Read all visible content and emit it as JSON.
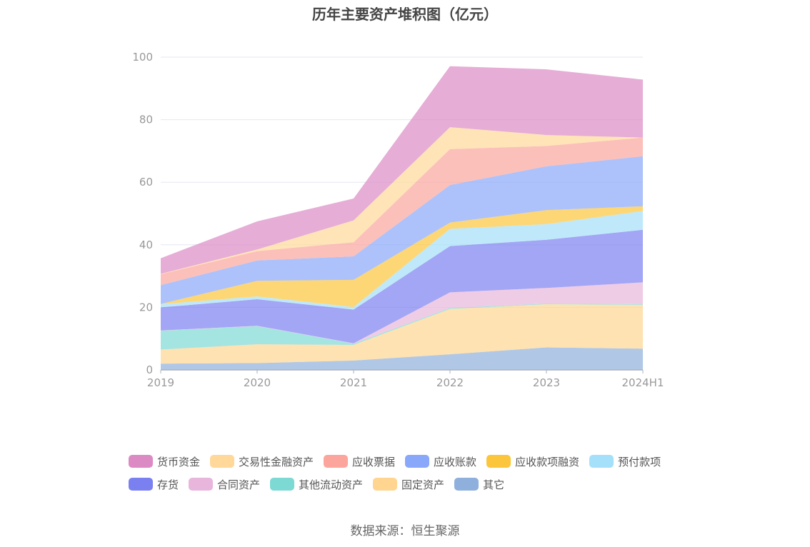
{
  "chart_data": {
    "type": "area",
    "stacked": true,
    "title": "历年主要资产堆积图（亿元）",
    "xlabel": "",
    "ylabel": "",
    "categories": [
      "2019",
      "2020",
      "2021",
      "2022",
      "2023",
      "2024H1"
    ],
    "ylim": [
      0,
      100
    ],
    "yticks": [
      "0",
      "20",
      "40",
      "60",
      "80",
      "100"
    ],
    "grid": true,
    "legend_position": "bottom",
    "series": [
      {
        "name": "其它",
        "color": "#8fb0dc",
        "values": [
          2.0,
          2.2,
          3.0,
          5.0,
          7.2,
          6.8
        ]
      },
      {
        "name": "固定资产",
        "color": "#ffd590",
        "values": [
          4.5,
          6.0,
          5.0,
          14.5,
          13.8,
          14.0
        ]
      },
      {
        "name": "其他流动资产",
        "color": "#7dd9d4",
        "values": [
          6.0,
          5.8,
          0.4,
          0.3,
          0.2,
          0.2
        ]
      },
      {
        "name": "合同资产",
        "color": "#e8b6dc",
        "values": [
          0.1,
          0.1,
          0.1,
          5.0,
          5.0,
          7.0
        ]
      },
      {
        "name": "存货",
        "color": "#7b80f0",
        "values": [
          7.4,
          8.5,
          10.8,
          14.8,
          15.4,
          16.8
        ]
      },
      {
        "name": "预付款项",
        "color": "#a4e0fa",
        "values": [
          1.0,
          0.9,
          0.8,
          5.5,
          5.0,
          6.0
        ]
      },
      {
        "name": "应收款项融资",
        "color": "#fcc63c",
        "values": [
          0.1,
          5.0,
          8.7,
          2.0,
          4.5,
          1.5
        ]
      },
      {
        "name": "应收账款",
        "color": "#8aa8fa",
        "values": [
          6.0,
          6.5,
          7.5,
          12.0,
          14.0,
          16.0
        ]
      },
      {
        "name": "应收票据",
        "color": "#fba59c",
        "values": [
          3.5,
          3.0,
          4.5,
          11.5,
          6.5,
          6.0
        ]
      },
      {
        "name": "交易性金融资产",
        "color": "#ffd89a",
        "values": [
          0.1,
          0.5,
          7.0,
          7.0,
          3.5,
          0.0
        ]
      },
      {
        "name": "货币资金",
        "color": "#dc8ac4",
        "values": [
          5.0,
          9.0,
          7.0,
          19.5,
          21.0,
          18.5
        ]
      }
    ]
  },
  "legend_rows": [
    [
      {
        "label": "货币资金",
        "color": "#dc8ac4"
      },
      {
        "label": "交易性金融资产",
        "color": "#ffd89a"
      },
      {
        "label": "应收票据",
        "color": "#fba59c"
      },
      {
        "label": "应收账款",
        "color": "#8aa8fa"
      },
      {
        "label": "应收款项融资",
        "color": "#fcc63c"
      },
      {
        "label": "预付款项",
        "color": "#a4e0fa"
      }
    ],
    [
      {
        "label": "存货",
        "color": "#7b80f0"
      },
      {
        "label": "合同资产",
        "color": "#e8b6dc"
      },
      {
        "label": "其他流动资产",
        "color": "#7dd9d4"
      },
      {
        "label": "固定资产",
        "color": "#ffd590"
      },
      {
        "label": "其它",
        "color": "#8fb0dc"
      }
    ]
  ],
  "source": "数据来源：恒生聚源"
}
